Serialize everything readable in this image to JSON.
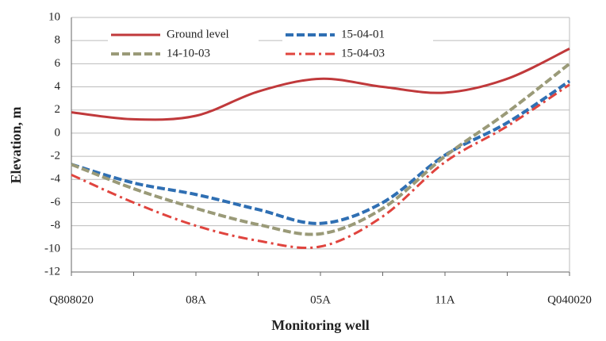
{
  "chart_data": {
    "type": "line",
    "x_label": "Monitoring well",
    "y_label": "Elevation, m",
    "categories": [
      "Q808020",
      null,
      "08A",
      null,
      "05A",
      null,
      "11A",
      null,
      "Q040020"
    ],
    "series": [
      {
        "name": "Ground level",
        "color": "#c0393b",
        "dash": "solid",
        "values": [
          1.8,
          1.2,
          1.5,
          3.6,
          4.7,
          4.0,
          3.5,
          4.7,
          7.3
        ]
      },
      {
        "name": "15-04-01",
        "color": "#2f6fb3",
        "dash": "dashed",
        "values": [
          -2.7,
          -4.3,
          -5.3,
          -6.6,
          -7.8,
          -6.0,
          -1.9,
          0.9,
          4.5
        ]
      },
      {
        "name": "14-10-03",
        "color": "#9a9a78",
        "dash": "dashed",
        "values": [
          -2.7,
          -4.8,
          -6.5,
          -7.9,
          -8.7,
          -6.5,
          -2.0,
          1.8,
          6.0
        ]
      },
      {
        "name": "15-04-03",
        "color": "#e0443e",
        "dash": "dashdot",
        "values": [
          -3.6,
          -6.0,
          -8.0,
          -9.3,
          -9.8,
          -7.2,
          -2.5,
          0.6,
          4.2
        ]
      }
    ],
    "ylim": [
      -12,
      10
    ],
    "yticks": [
      -12,
      -10,
      -8,
      -6,
      -4,
      -2,
      0,
      2,
      4,
      6,
      8,
      10
    ],
    "grid": true
  }
}
